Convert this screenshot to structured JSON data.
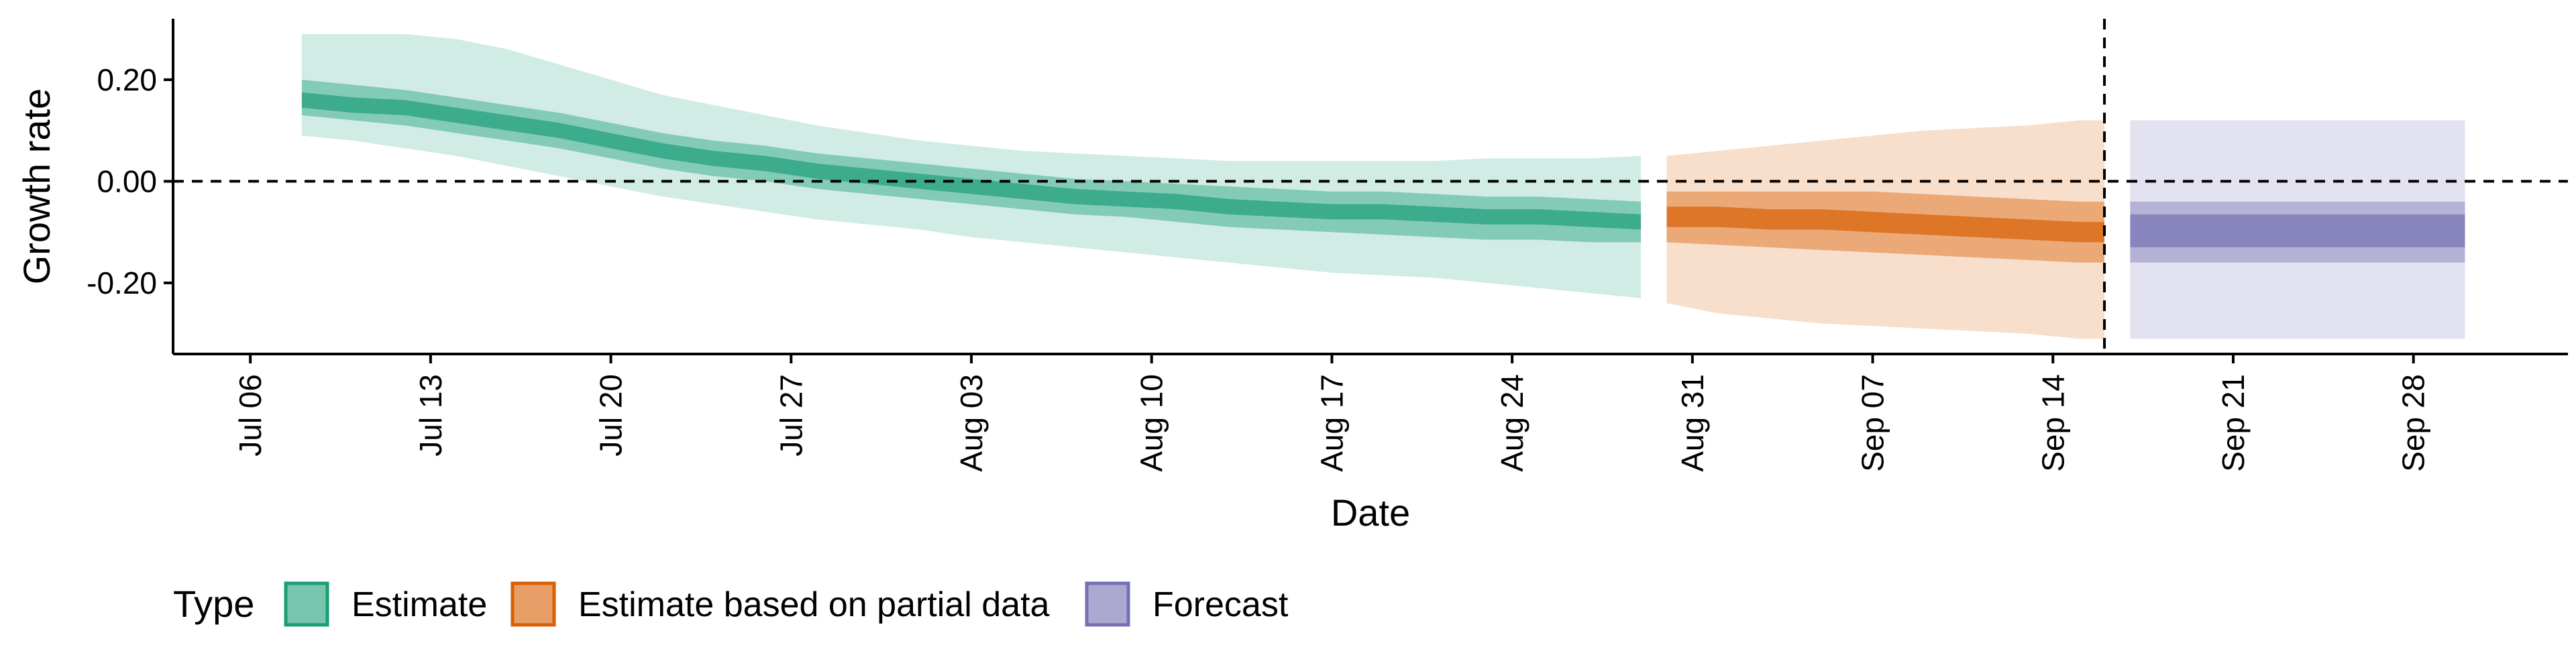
{
  "chart_data": {
    "type": "area",
    "title": "",
    "xlabel": "Date",
    "ylabel": "Growth rate",
    "xlim": [
      "2020-07-03",
      "2020-10-04"
    ],
    "ylim": [
      -0.34,
      0.32
    ],
    "x_ticks": [
      "2020-07-06",
      "2020-07-13",
      "2020-07-20",
      "2020-07-27",
      "2020-08-03",
      "2020-08-10",
      "2020-08-17",
      "2020-08-24",
      "2020-08-31",
      "2020-09-07",
      "2020-09-14",
      "2020-09-21",
      "2020-09-28"
    ],
    "x_tick_labels": [
      "Jul 06",
      "Jul 13",
      "Jul 20",
      "Jul 27",
      "Aug 03",
      "Aug 10",
      "Aug 17",
      "Aug 24",
      "Aug 31",
      "Sep 07",
      "Sep 14",
      "Sep 21",
      "Sep 28"
    ],
    "y_ticks": [
      0.2,
      0.0,
      -0.2
    ],
    "y_tick_labels": [
      "0.20",
      "0.00",
      "-0.20"
    ],
    "reference_lines": {
      "horizontal_y": 0.0,
      "vertical_x": "2020-09-16"
    },
    "grid": false,
    "legend": {
      "title": "Type",
      "placement": "bottom",
      "entries": [
        {
          "label": "Estimate",
          "color": "#1b9e77"
        },
        {
          "label": "Estimate based on partial data",
          "color": "#d95f02"
        },
        {
          "label": "Forecast",
          "color": "#7570b3"
        }
      ]
    },
    "bands_description": [
      "90% interval (outer)",
      "50% interval (middle)",
      "20% interval (inner)"
    ],
    "series": [
      {
        "name": "Estimate",
        "color": "#1b9e77",
        "x": [
          "2020-07-08",
          "2020-07-10",
          "2020-07-12",
          "2020-07-14",
          "2020-07-16",
          "2020-07-18",
          "2020-07-20",
          "2020-07-22",
          "2020-07-24",
          "2020-07-26",
          "2020-07-28",
          "2020-07-30",
          "2020-08-01",
          "2020-08-03",
          "2020-08-05",
          "2020-08-07",
          "2020-08-09",
          "2020-08-11",
          "2020-08-13",
          "2020-08-15",
          "2020-08-17",
          "2020-08-19",
          "2020-08-21",
          "2020-08-23",
          "2020-08-25",
          "2020-08-27",
          "2020-08-29"
        ],
        "median": [
          0.16,
          0.15,
          0.145,
          0.13,
          0.115,
          0.1,
          0.08,
          0.06,
          0.045,
          0.035,
          0.02,
          0.01,
          0.0,
          -0.01,
          -0.02,
          -0.03,
          -0.035,
          -0.04,
          -0.05,
          -0.055,
          -0.06,
          -0.06,
          -0.065,
          -0.07,
          -0.07,
          -0.075,
          -0.08
        ],
        "lower_90": [
          0.09,
          0.08,
          0.065,
          0.05,
          0.03,
          0.01,
          -0.01,
          -0.03,
          -0.045,
          -0.06,
          -0.075,
          -0.085,
          -0.095,
          -0.11,
          -0.12,
          -0.13,
          -0.14,
          -0.15,
          -0.16,
          -0.17,
          -0.18,
          -0.185,
          -0.19,
          -0.2,
          -0.21,
          -0.22,
          -0.23
        ],
        "upper_90": [
          0.29,
          0.29,
          0.29,
          0.28,
          0.26,
          0.23,
          0.2,
          0.17,
          0.15,
          0.13,
          0.11,
          0.095,
          0.08,
          0.07,
          0.06,
          0.055,
          0.05,
          0.045,
          0.04,
          0.04,
          0.04,
          0.04,
          0.04,
          0.045,
          0.045,
          0.045,
          0.05
        ],
        "lower_50": [
          0.13,
          0.12,
          0.11,
          0.095,
          0.08,
          0.065,
          0.045,
          0.025,
          0.01,
          0.0,
          -0.015,
          -0.025,
          -0.035,
          -0.045,
          -0.055,
          -0.065,
          -0.07,
          -0.08,
          -0.09,
          -0.095,
          -0.1,
          -0.105,
          -0.11,
          -0.115,
          -0.115,
          -0.12,
          -0.12
        ],
        "upper_50": [
          0.2,
          0.19,
          0.18,
          0.165,
          0.15,
          0.135,
          0.115,
          0.095,
          0.08,
          0.07,
          0.055,
          0.045,
          0.035,
          0.025,
          0.015,
          0.005,
          0.0,
          -0.005,
          -0.01,
          -0.015,
          -0.02,
          -0.02,
          -0.025,
          -0.03,
          -0.03,
          -0.035,
          -0.04
        ],
        "lower_20": [
          0.145,
          0.135,
          0.13,
          0.115,
          0.1,
          0.085,
          0.065,
          0.045,
          0.03,
          0.02,
          0.005,
          -0.005,
          -0.015,
          -0.025,
          -0.035,
          -0.045,
          -0.05,
          -0.055,
          -0.065,
          -0.07,
          -0.075,
          -0.075,
          -0.08,
          -0.085,
          -0.085,
          -0.09,
          -0.095
        ],
        "upper_20": [
          0.175,
          0.165,
          0.16,
          0.145,
          0.13,
          0.115,
          0.095,
          0.075,
          0.06,
          0.05,
          0.035,
          0.025,
          0.015,
          0.005,
          -0.005,
          -0.015,
          -0.02,
          -0.025,
          -0.035,
          -0.04,
          -0.045,
          -0.045,
          -0.05,
          -0.055,
          -0.055,
          -0.06,
          -0.065
        ]
      },
      {
        "name": "Estimate based on partial data",
        "color": "#d95f02",
        "x": [
          "2020-08-30",
          "2020-09-01",
          "2020-09-03",
          "2020-09-05",
          "2020-09-07",
          "2020-09-09",
          "2020-09-11",
          "2020-09-13",
          "2020-09-15",
          "2020-09-16"
        ],
        "median": [
          -0.07,
          -0.07,
          -0.075,
          -0.075,
          -0.08,
          -0.085,
          -0.09,
          -0.095,
          -0.1,
          -0.1
        ],
        "lower_90": [
          -0.24,
          -0.26,
          -0.27,
          -0.28,
          -0.285,
          -0.29,
          -0.295,
          -0.3,
          -0.31,
          -0.31
        ],
        "upper_90": [
          0.05,
          0.06,
          0.07,
          0.08,
          0.09,
          0.1,
          0.105,
          0.11,
          0.12,
          0.12
        ],
        "lower_50": [
          -0.12,
          -0.125,
          -0.13,
          -0.135,
          -0.14,
          -0.145,
          -0.15,
          -0.155,
          -0.16,
          -0.16
        ],
        "upper_50": [
          -0.02,
          -0.02,
          -0.02,
          -0.02,
          -0.02,
          -0.025,
          -0.03,
          -0.035,
          -0.04,
          -0.04
        ],
        "lower_20": [
          -0.09,
          -0.09,
          -0.095,
          -0.095,
          -0.1,
          -0.105,
          -0.11,
          -0.115,
          -0.12,
          -0.12
        ],
        "upper_20": [
          -0.05,
          -0.05,
          -0.055,
          -0.055,
          -0.06,
          -0.065,
          -0.07,
          -0.075,
          -0.08,
          -0.08
        ]
      },
      {
        "name": "Forecast",
        "color": "#7570b3",
        "x": [
          "2020-09-17",
          "2020-09-30"
        ],
        "median": [
          -0.1,
          -0.1
        ],
        "lower_90": [
          -0.31,
          -0.31
        ],
        "upper_90": [
          0.12,
          0.12
        ],
        "lower_50": [
          -0.16,
          -0.16
        ],
        "upper_50": [
          -0.04,
          -0.04
        ],
        "lower_20": [
          -0.13,
          -0.13
        ],
        "upper_20": [
          -0.065,
          -0.065
        ]
      }
    ]
  }
}
